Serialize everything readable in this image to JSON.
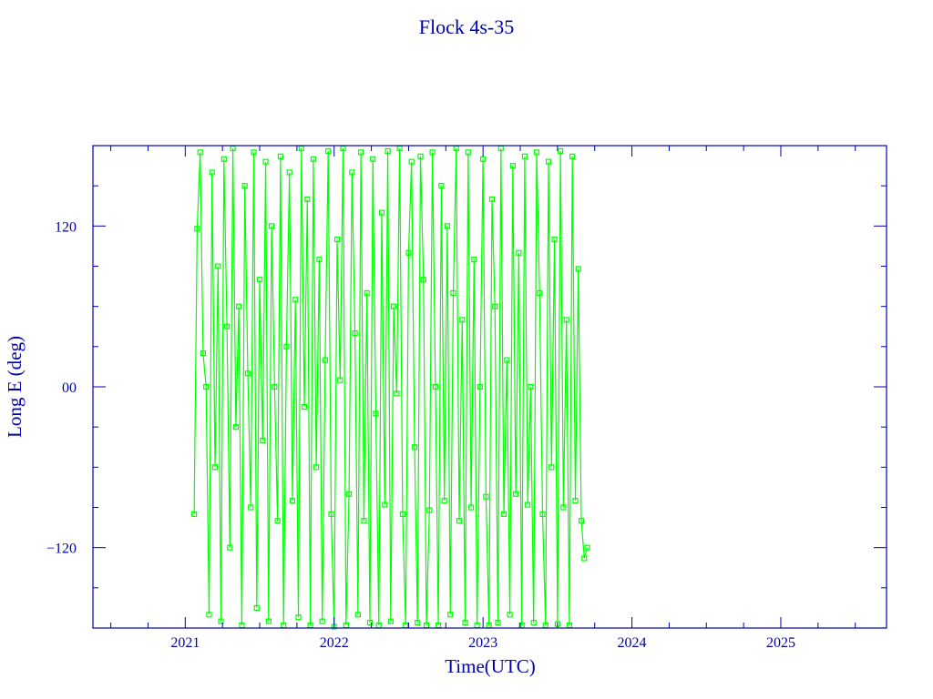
{
  "chart_data": {
    "type": "line",
    "title": "Flock 4s-35",
    "xlabel": "Time(UTC)",
    "ylabel": "Long E (deg)",
    "xlim": [
      2020.38,
      2025.71
    ],
    "ylim": [
      -180,
      180
    ],
    "xticks": [
      "2021",
      "2022",
      "2023",
      "2024",
      "2025"
    ],
    "xtick_values": [
      2021,
      2022,
      2023,
      2024,
      2025
    ],
    "yticks": [
      "120",
      "00",
      "−120"
    ],
    "ytick_values": [
      120,
      0,
      -120
    ],
    "grid": false,
    "markers": "square",
    "colors": {
      "series": "#00ff00",
      "axes": "#0000b0"
    },
    "series": [
      {
        "x": [
          2021.06,
          2021.08,
          2021.1,
          2021.12,
          2021.14,
          2021.16,
          2021.18,
          2021.2,
          2021.22,
          2021.24,
          2021.26,
          2021.28,
          2021.3,
          2021.32,
          2021.34,
          2021.36,
          2021.38,
          2021.4,
          2021.42,
          2021.44,
          2021.46,
          2021.48,
          2021.5,
          2021.52,
          2021.54,
          2021.56,
          2021.58,
          2021.6,
          2021.62,
          2021.64,
          2021.66,
          2021.68,
          2021.7,
          2021.72,
          2021.74,
          2021.76,
          2021.78,
          2021.8,
          2021.82,
          2021.84,
          2021.86,
          2021.88,
          2021.9,
          2021.92,
          2021.94,
          2021.96,
          2021.98,
          2022.0,
          2022.02,
          2022.04,
          2022.06,
          2022.08,
          2022.1,
          2022.12,
          2022.14,
          2022.16,
          2022.18,
          2022.2,
          2022.22,
          2022.24,
          2022.26,
          2022.28,
          2022.3,
          2022.32,
          2022.34,
          2022.36,
          2022.38,
          2022.4,
          2022.42,
          2022.44,
          2022.46,
          2022.48,
          2022.5,
          2022.52,
          2022.54,
          2022.56,
          2022.58,
          2022.6,
          2022.62,
          2022.64,
          2022.66,
          2022.68,
          2022.7,
          2022.72,
          2022.74,
          2022.76,
          2022.78,
          2022.8,
          2022.82,
          2022.84,
          2022.86,
          2022.88,
          2022.9,
          2022.92,
          2022.94,
          2022.96,
          2022.98,
          2023.0,
          2023.02,
          2023.04,
          2023.06,
          2023.08,
          2023.1,
          2023.12,
          2023.14,
          2023.16,
          2023.18,
          2023.2,
          2023.22,
          2023.24,
          2023.26,
          2023.28,
          2023.3,
          2023.32,
          2023.34,
          2023.36,
          2023.38,
          2023.4,
          2023.42,
          2023.44,
          2023.46,
          2023.48,
          2023.5,
          2023.52,
          2023.54,
          2023.56,
          2023.58,
          2023.6,
          2023.62,
          2023.64,
          2023.66,
          2023.68,
          2023.7
        ],
        "y": [
          -95,
          118,
          175,
          25,
          0,
          -170,
          160,
          -60,
          90,
          -175,
          170,
          45,
          -120,
          178,
          -30,
          60,
          -178,
          150,
          10,
          -90,
          175,
          -165,
          80,
          -40,
          168,
          -175,
          120,
          0,
          -100,
          172,
          -178,
          30,
          160,
          -85,
          65,
          -172,
          178,
          -15,
          140,
          -178,
          170,
          -60,
          95,
          -175,
          20,
          176,
          -95,
          -179,
          110,
          5,
          178,
          -178,
          -80,
          160,
          40,
          -170,
          175,
          -100,
          70,
          -176,
          170,
          -20,
          -178,
          130,
          -88,
          176,
          -175,
          60,
          -5,
          178,
          -95,
          -178,
          100,
          168,
          -45,
          -176,
          172,
          80,
          -178,
          -92,
          175,
          0,
          -178,
          150,
          -85,
          120,
          -170,
          70,
          178,
          -100,
          50,
          -176,
          175,
          -90,
          95,
          -178,
          0,
          170,
          -82,
          -178,
          140,
          60,
          -176,
          178,
          -95,
          20,
          -170,
          165,
          -80,
          100,
          -178,
          172,
          -88,
          0,
          -176,
          175,
          70,
          -95,
          -178,
          168,
          -60,
          110,
          -177,
          176,
          -90,
          50,
          -178,
          172,
          -85,
          88,
          -100,
          -128,
          -120
        ]
      }
    ]
  }
}
